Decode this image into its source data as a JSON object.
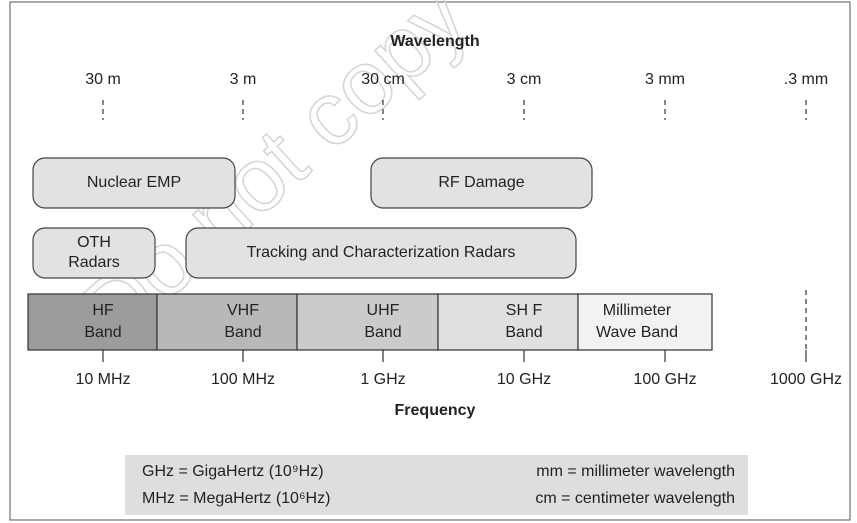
{
  "title": "Wavelength",
  "wavelengths": [
    "30 m",
    "3 m",
    "30 cm",
    "3 cm",
    "3 mm",
    ".3 mm"
  ],
  "regions": [
    {
      "lines": [
        "Nuclear EMP"
      ]
    },
    {
      "lines": [
        "RF Damage"
      ]
    },
    {
      "lines": [
        "OTH",
        "Radars"
      ]
    },
    {
      "lines": [
        "Tracking and Characterization Radars"
      ]
    }
  ],
  "bands": [
    {
      "lines": [
        "HF",
        "Band"
      ]
    },
    {
      "lines": [
        "VHF",
        "Band"
      ]
    },
    {
      "lines": [
        "UHF",
        "Band"
      ]
    },
    {
      "lines": [
        "SH F",
        "Band"
      ]
    },
    {
      "lines": [
        "Millimeter",
        "Wave Band"
      ]
    }
  ],
  "frequencies": [
    "10 MHz",
    "100 MHz",
    "1 GHz",
    "10 GHz",
    "100 GHz",
    "1000 GHz"
  ],
  "frequency_label": "Frequency",
  "legend": [
    "GHz = GigaHertz (10⁹Hz)",
    "mm = millimeter wavelength",
    "MHz = MegaHertz (10⁶Hz)",
    "cm = centimeter wavelength"
  ],
  "watermark": "Do not copy"
}
